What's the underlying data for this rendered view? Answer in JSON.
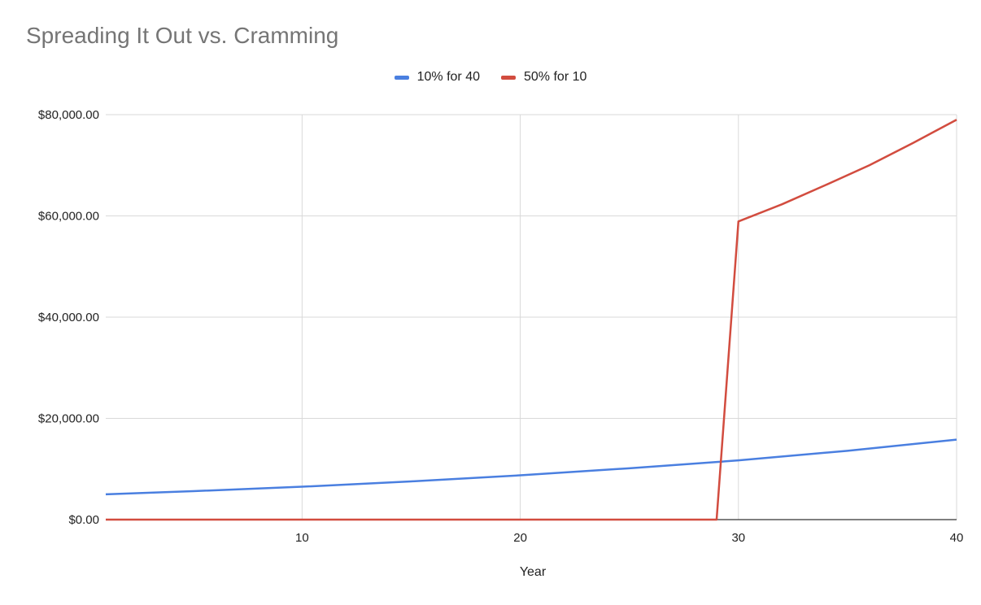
{
  "chart_data": {
    "type": "line",
    "title": "Spreading It Out vs. Cramming",
    "xlabel": "Year",
    "ylabel": "",
    "xlim": [
      1,
      40
    ],
    "ylim": [
      0,
      80000
    ],
    "x_ticks": [
      10,
      20,
      30,
      40
    ],
    "x_tick_labels": [
      "10",
      "20",
      "30",
      "40"
    ],
    "y_ticks": [
      0,
      20000,
      40000,
      60000,
      80000
    ],
    "y_tick_labels": [
      "$0.00",
      "$20,000.00",
      "$40,000.00",
      "$60,000.00",
      "$80,000.00"
    ],
    "grid": true,
    "legend_position": "top-center",
    "series": [
      {
        "name": "10% for 40",
        "color": "#4a7fe0",
        "points": [
          [
            1,
            5000
          ],
          [
            5,
            5620
          ],
          [
            10,
            6500
          ],
          [
            15,
            7550
          ],
          [
            20,
            8750
          ],
          [
            25,
            10150
          ],
          [
            30,
            11700
          ],
          [
            35,
            13600
          ],
          [
            40,
            15800
          ]
        ]
      },
      {
        "name": "50% for 10",
        "color": "#d24c3f",
        "points": [
          [
            1,
            0
          ],
          [
            29,
            0
          ],
          [
            30,
            58900
          ],
          [
            32,
            62300
          ],
          [
            34,
            66100
          ],
          [
            36,
            70000
          ],
          [
            38,
            74400
          ],
          [
            40,
            79000
          ]
        ]
      }
    ]
  }
}
